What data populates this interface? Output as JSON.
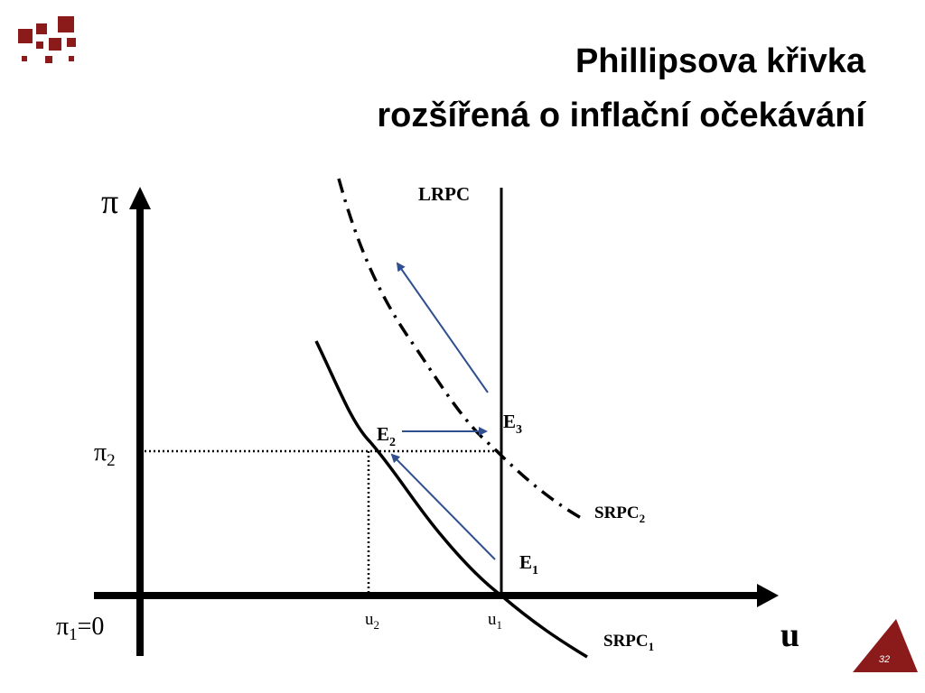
{
  "header": {
    "title": [
      "Phillipsova křivka",
      "rozšířená o inflační očekávání"
    ]
  },
  "diagram": {
    "y_axis_label": "π",
    "x_axis_label": "u",
    "lrpc": "LRPC",
    "e3": {
      "base": "E",
      "sub": "3"
    },
    "e2": {
      "base": "E",
      "sub": "2"
    },
    "e1": {
      "base": "E",
      "sub": "1"
    },
    "srpc2": {
      "base": "SRPC",
      "sub": "2"
    },
    "srpc1": {
      "base": "SRPC",
      "sub": "1"
    },
    "pi2": {
      "base": "π",
      "sub": "2"
    },
    "pi1": {
      "base": "π",
      "sub": "1",
      "rest": "=0"
    },
    "u2": {
      "base": "u",
      "sub": "2"
    },
    "u1": {
      "base": "u",
      "sub": "1"
    }
  },
  "footer": {
    "page_number": "32"
  }
}
